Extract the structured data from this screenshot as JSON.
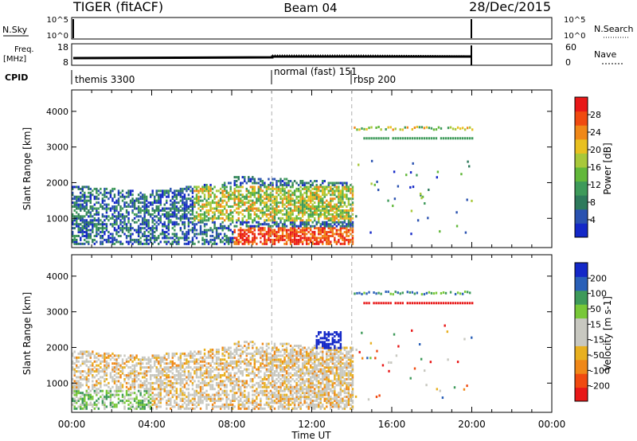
{
  "header": {
    "radar": "TIGER (fitACF)",
    "beam": "Beam 04",
    "date": "28/Dec/2015"
  },
  "sky_panel": {
    "left_label": "N.Sky",
    "right_label": "N.Search",
    "left_ticks": [
      "10^5",
      "10^0"
    ],
    "right_ticks": [
      "10^5",
      "10^0"
    ]
  },
  "freq_panel": {
    "left_label_top": "Freq.",
    "left_label_bottom": "[MHz]",
    "left_ticks": [
      "18",
      "8"
    ],
    "right_label": "Nave",
    "right_ticks": [
      "60",
      "0"
    ]
  },
  "cpid": {
    "label": "CPID",
    "segments": [
      {
        "text": "themis 3300",
        "start_h": 0
      },
      {
        "text": "normal (fast) 151",
        "start_h": 10.0
      },
      {
        "text": "rbsp 200",
        "start_h": 14.0
      }
    ]
  },
  "colors": {
    "power": [
      "#1428c8",
      "#2a52b0",
      "#2e7a5c",
      "#3e9a5a",
      "#62b83a",
      "#a8c83a",
      "#e8c020",
      "#f08818",
      "#f04a10",
      "#e81818"
    ],
    "velocity": [
      "#e81818",
      "#f04a10",
      "#f08818",
      "#e8b020",
      "#c8c8c0",
      "#c8c8c0",
      "#78c838",
      "#3e9a5a",
      "#2a60b8",
      "#1428c8"
    ]
  },
  "chart_data": [
    {
      "type": "heatmap",
      "name": "power",
      "xlabel": "",
      "ylabel": "Slant Range [km]",
      "x_ticks": [
        "00:00",
        "04:00",
        "08:00",
        "12:00",
        "16:00",
        "20:00",
        "00:00"
      ],
      "xlim_hours": [
        0,
        24
      ],
      "y_ticks": [
        1000,
        2000,
        3000,
        4000
      ],
      "ylim_km": [
        180,
        4600
      ],
      "colorbar": {
        "label": "Power [dB]",
        "ticks": [
          4,
          8,
          12,
          16,
          20,
          24,
          28
        ],
        "range": [
          0,
          32
        ]
      },
      "data_end_hour": 20.0,
      "mode_changes_hours": [
        10.0,
        14.0
      ]
    },
    {
      "type": "heatmap",
      "name": "velocity",
      "xlabel": "Time UT",
      "ylabel": "Slant Range [km]",
      "x_ticks": [
        "00:00",
        "04:00",
        "08:00",
        "12:00",
        "16:00",
        "20:00",
        "00:00"
      ],
      "xlim_hours": [
        0,
        24
      ],
      "y_ticks": [
        1000,
        2000,
        3000,
        4000
      ],
      "ylim_km": [
        180,
        4600
      ],
      "colorbar": {
        "label": "Velocity [m s-1]",
        "ticks": [
          200,
          100,
          50,
          15,
          -15,
          -50,
          -100,
          -200
        ]
      },
      "data_end_hour": 20.0,
      "mode_changes_hours": [
        10.0,
        14.0
      ]
    }
  ]
}
